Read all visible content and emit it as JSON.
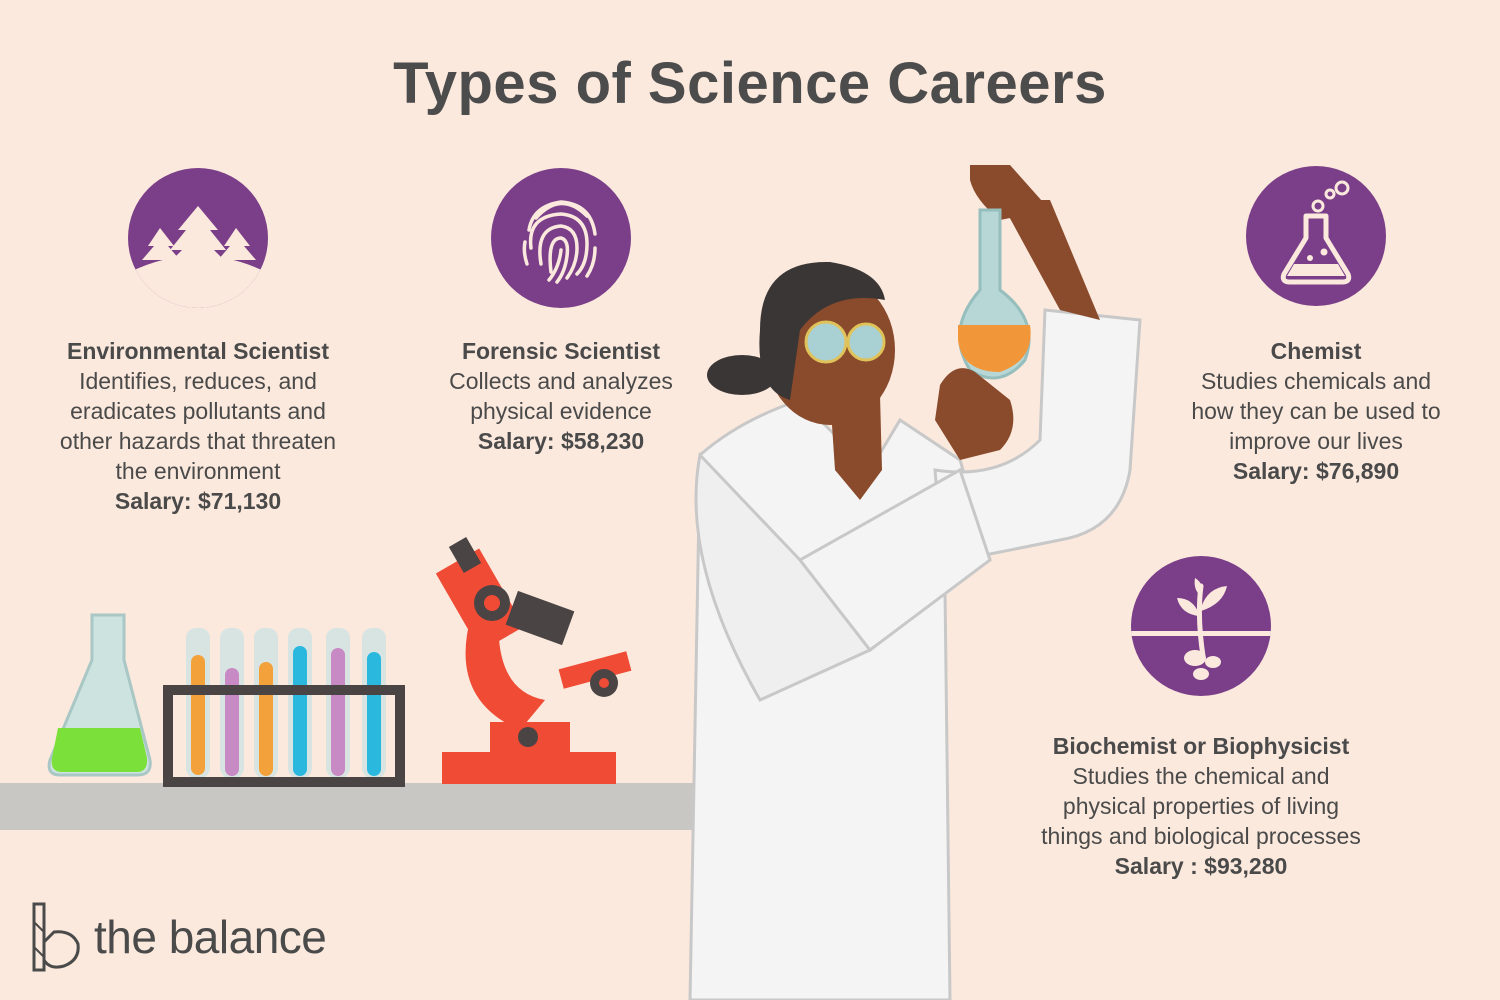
{
  "title": "Types of Science Careers",
  "accent_color": "#7b3f8a",
  "careers": [
    {
      "icon": "trees-icon",
      "name": "Environmental Scientist",
      "description": "Identifies, reduces, and\neradicates pollutants and\nother hazards that threaten\nthe environment",
      "salary": "Salary: $71,130"
    },
    {
      "icon": "fingerprint-icon",
      "name": "Forensic Scientist",
      "description": "Collects and analyzes\nphysical evidence",
      "salary": "Salary: $58,230"
    },
    {
      "icon": "flask-icon",
      "name": "Chemist",
      "description": "Studies chemicals and\nhow they can be used to\nimprove our lives",
      "salary": "Salary: $76,890"
    },
    {
      "icon": "sprout-icon",
      "name": "Biochemist or Biophysicist",
      "description": "Studies the chemical and\nphysical properties of living\nthings and biological processes",
      "salary": "Salary : $93,280"
    }
  ],
  "brand": {
    "name": "the balance",
    "logo_icon": "balance-logo-icon"
  }
}
